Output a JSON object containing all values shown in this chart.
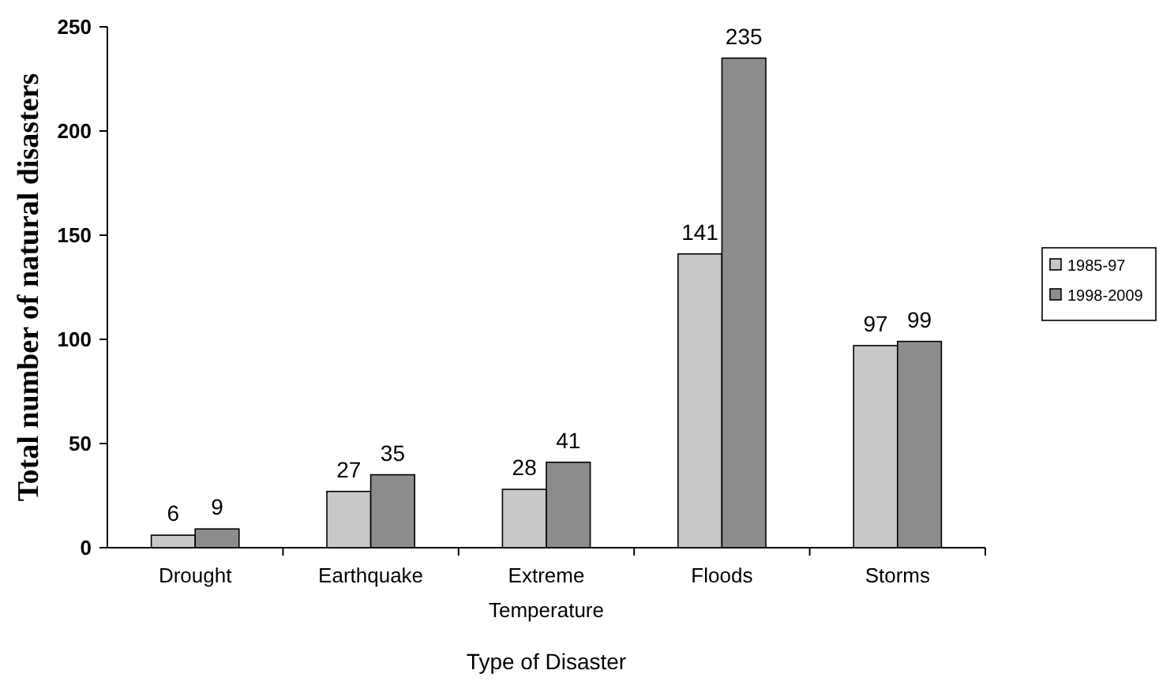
{
  "chart_data": {
    "type": "bar",
    "xlabel": "Type of Disaster",
    "ylabel": "Total number of natural disasters",
    "categories": [
      "Drought",
      "Earthquake",
      "Extreme Temperature",
      "Floods",
      "Storms"
    ],
    "series": [
      {
        "name": "1985-97",
        "color": "#c8c8c8",
        "values": [
          6,
          27,
          28,
          141,
          97
        ]
      },
      {
        "name": "1998-2009",
        "color": "#8c8c8c",
        "values": [
          9,
          35,
          41,
          235,
          99
        ]
      }
    ],
    "ylim": [
      0,
      250
    ],
    "yticks": [
      0,
      50,
      100,
      150,
      200,
      250
    ],
    "data_labels": true,
    "legend": "right",
    "grid": false
  }
}
